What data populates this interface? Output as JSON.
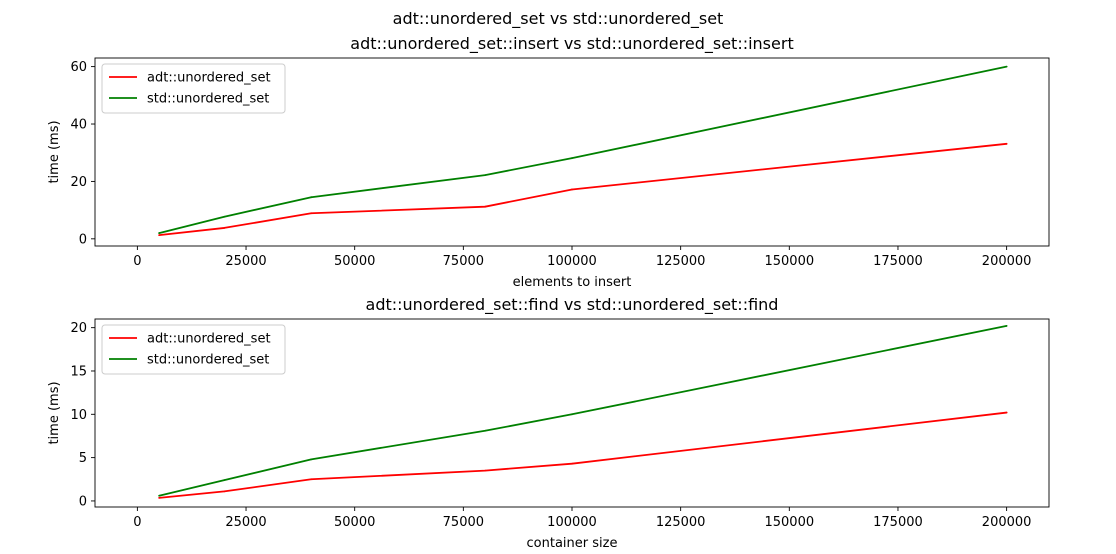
{
  "suptitle": "adt::unordered_set vs std::unordered_set",
  "chart_data": [
    {
      "type": "line",
      "title": "adt::unordered_set::insert vs std::unordered_set::insert",
      "xlabel": "elements to insert",
      "ylabel": "time (ms)",
      "xlim": [
        -9750,
        209750
      ],
      "ylim": [
        -2.5,
        63.0
      ],
      "xticks": [
        0,
        25000,
        50000,
        75000,
        100000,
        125000,
        150000,
        175000,
        200000
      ],
      "yticks": [
        0,
        20,
        40,
        60
      ],
      "grid": false,
      "legend": "upper left",
      "x": [
        5000,
        20000,
        40000,
        80000,
        100000,
        200000
      ],
      "series": [
        {
          "name": "adt::unordered_set",
          "color": "#ff0000",
          "values": [
            1.3,
            3.8,
            8.9,
            11.2,
            17.2,
            33.1
          ]
        },
        {
          "name": "std::unordered_set",
          "color": "#008000",
          "values": [
            2.0,
            7.7,
            14.5,
            22.2,
            28.1,
            60.0
          ]
        }
      ]
    },
    {
      "type": "line",
      "title": "adt::unordered_set::find vs std::unordered_set::find",
      "xlabel": "container size",
      "ylabel": "time (ms)",
      "xlim": [
        -9750,
        209750
      ],
      "ylim": [
        -0.7,
        21.0
      ],
      "xticks": [
        0,
        25000,
        50000,
        75000,
        100000,
        125000,
        150000,
        175000,
        200000
      ],
      "yticks": [
        0,
        5,
        10,
        15,
        20
      ],
      "grid": false,
      "legend": "upper left",
      "x": [
        5000,
        20000,
        40000,
        80000,
        100000,
        200000
      ],
      "series": [
        {
          "name": "adt::unordered_set",
          "color": "#ff0000",
          "values": [
            0.35,
            1.1,
            2.5,
            3.5,
            4.3,
            10.2
          ]
        },
        {
          "name": "std::unordered_set",
          "color": "#008000",
          "values": [
            0.6,
            2.4,
            4.8,
            8.1,
            10.0,
            20.2
          ]
        }
      ]
    }
  ]
}
